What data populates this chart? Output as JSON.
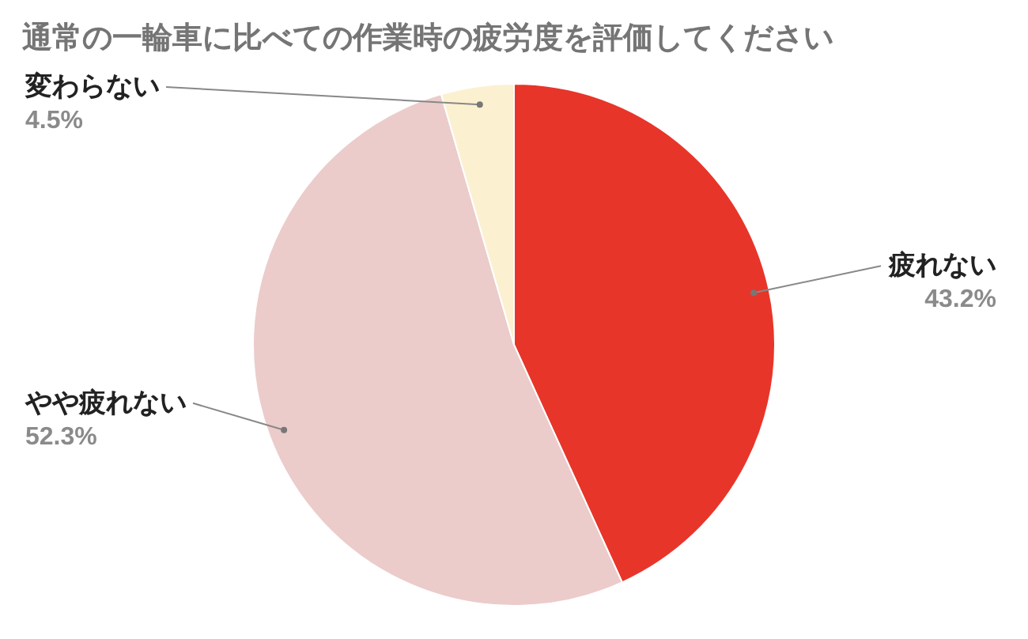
{
  "chart_data": {
    "type": "pie",
    "title": "通常の一輪車に比べての作業時の疲労度を評価してください",
    "categories": [
      "疲れない",
      "やや疲れない",
      "変わらない"
    ],
    "values": [
      43.2,
      52.3,
      4.5
    ],
    "value_labels": [
      "43.2%",
      "52.3%",
      "4.5%"
    ],
    "colors": [
      "#e8352a",
      "#ebcccb",
      "#fbf0d0"
    ],
    "legend": false
  }
}
